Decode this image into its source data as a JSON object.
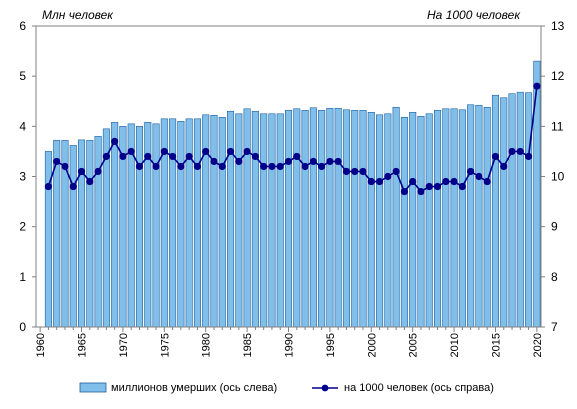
{
  "chart_data": {
    "type": "bar",
    "left_axis_unit": "Млн  человек",
    "right_axis_unit": "На 1000 человек",
    "x_tick_labels": [
      "1960",
      "1965",
      "1970",
      "1975",
      "1980",
      "1985",
      "1990",
      "1995",
      "2000",
      "2005",
      "2010",
      "2015",
      "2020"
    ],
    "ylim_left": [
      0,
      6
    ],
    "ylim_right": [
      7,
      13
    ],
    "left_ticks": [
      "0",
      "1",
      "2",
      "3",
      "4",
      "5",
      "6"
    ],
    "right_ticks": [
      "7",
      "8",
      "9",
      "10",
      "11",
      "12",
      "13"
    ],
    "grid": false,
    "legend_position": "bottom",
    "series": [
      {
        "name": "миллионов  умерших (ось слева)",
        "type": "bar",
        "axis": "left",
        "color": "#7fbfea",
        "x": [
          1961,
          1962,
          1963,
          1964,
          1965,
          1966,
          1967,
          1968,
          1969,
          1970,
          1971,
          1972,
          1973,
          1974,
          1975,
          1976,
          1977,
          1978,
          1979,
          1980,
          1981,
          1982,
          1983,
          1984,
          1985,
          1986,
          1987,
          1988,
          1989,
          1990,
          1991,
          1992,
          1993,
          1994,
          1995,
          1996,
          1997,
          1998,
          1999,
          2000,
          2001,
          2002,
          2003,
          2004,
          2005,
          2006,
          2007,
          2008,
          2009,
          2010,
          2011,
          2012,
          2013,
          2014,
          2015,
          2016,
          2017,
          2018,
          2019,
          2020
        ],
        "values": [
          3.5,
          3.72,
          3.72,
          3.62,
          3.73,
          3.72,
          3.8,
          3.95,
          4.08,
          4.0,
          4.05,
          4.0,
          4.08,
          4.05,
          4.15,
          4.15,
          4.1,
          4.15,
          4.15,
          4.23,
          4.22,
          4.18,
          4.3,
          4.25,
          4.35,
          4.3,
          4.25,
          4.25,
          4.25,
          4.32,
          4.35,
          4.32,
          4.37,
          4.32,
          4.36,
          4.36,
          4.33,
          4.32,
          4.32,
          4.28,
          4.23,
          4.25,
          4.38,
          4.18,
          4.28,
          4.2,
          4.25,
          4.32,
          4.35,
          4.35,
          4.33,
          4.43,
          4.42,
          4.38,
          4.62,
          4.57,
          4.65,
          4.68,
          4.67,
          5.3
        ]
      },
      {
        "name": "на 1000 человек (ось справа)",
        "type": "line",
        "axis": "right",
        "color": "#00008b",
        "x": [
          1961,
          1962,
          1963,
          1964,
          1965,
          1966,
          1967,
          1968,
          1969,
          1970,
          1971,
          1972,
          1973,
          1974,
          1975,
          1976,
          1977,
          1978,
          1979,
          1980,
          1981,
          1982,
          1983,
          1984,
          1985,
          1986,
          1987,
          1988,
          1989,
          1990,
          1991,
          1992,
          1993,
          1994,
          1995,
          1996,
          1997,
          1998,
          1999,
          2000,
          2001,
          2002,
          2003,
          2004,
          2005,
          2006,
          2007,
          2008,
          2009,
          2010,
          2011,
          2012,
          2013,
          2014,
          2015,
          2016,
          2017,
          2018,
          2019,
          2020
        ],
        "values": [
          9.8,
          10.3,
          10.2,
          9.8,
          10.1,
          9.9,
          10.1,
          10.4,
          10.7,
          10.4,
          10.5,
          10.2,
          10.4,
          10.2,
          10.5,
          10.4,
          10.2,
          10.4,
          10.2,
          10.5,
          10.3,
          10.2,
          10.5,
          10.3,
          10.5,
          10.4,
          10.2,
          10.2,
          10.2,
          10.3,
          10.4,
          10.2,
          10.3,
          10.2,
          10.3,
          10.3,
          10.1,
          10.1,
          10.1,
          9.9,
          9.9,
          10.0,
          10.1,
          9.7,
          9.9,
          9.7,
          9.8,
          9.8,
          9.9,
          9.9,
          9.8,
          10.1,
          10.0,
          9.9,
          10.4,
          10.2,
          10.5,
          10.5,
          10.4,
          11.8
        ]
      }
    ]
  }
}
